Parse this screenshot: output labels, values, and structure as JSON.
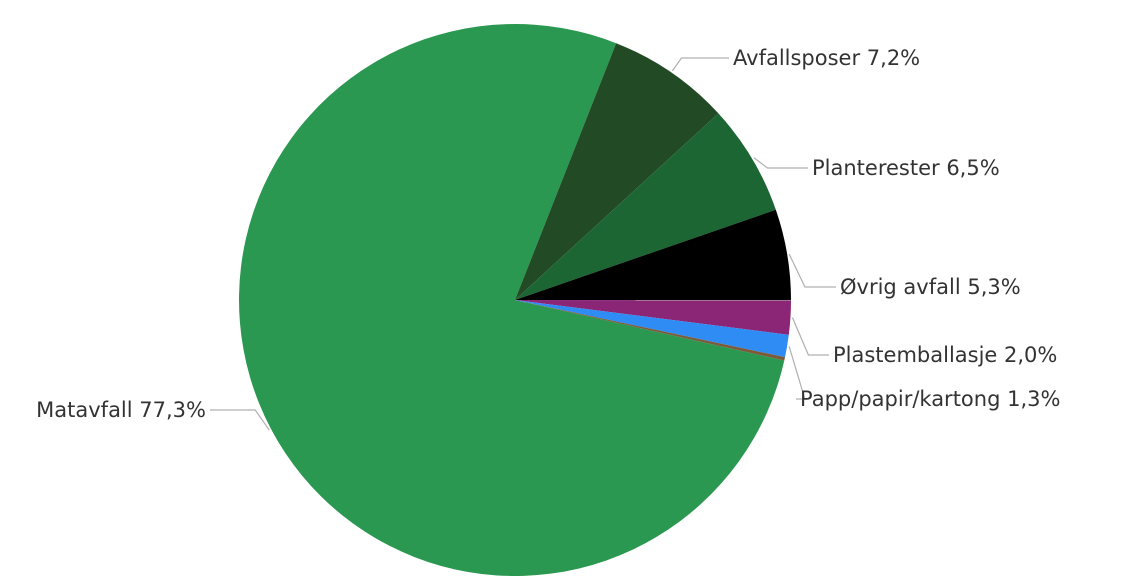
{
  "chart_data": {
    "type": "pie",
    "title": "",
    "legend": "none",
    "data_labels": "outside-with-leader-lines",
    "slices": [
      {
        "label": "Matavfall",
        "value": 77.3,
        "display": "77,3%",
        "color": "#2a9850"
      },
      {
        "label": "Avfallsposer",
        "value": 7.2,
        "display": "7,2%",
        "color": "#214a25"
      },
      {
        "label": "Planterester",
        "value": 6.5,
        "display": "6,5%",
        "color": "#1c6634"
      },
      {
        "label": "Øvrig avfall",
        "value": 5.3,
        "display": "5,3%",
        "color": "#000000"
      },
      {
        "label": "Plastemballasje",
        "value": 2.0,
        "display": "2,0%",
        "color": "#8b2576"
      },
      {
        "label": "Papp/papir/kartong",
        "value": 1.3,
        "display": "1,3%",
        "color": "#2f8cf5"
      },
      {
        "label": "",
        "value": 0.2,
        "display": "",
        "color": "#7a5c3c"
      }
    ]
  }
}
